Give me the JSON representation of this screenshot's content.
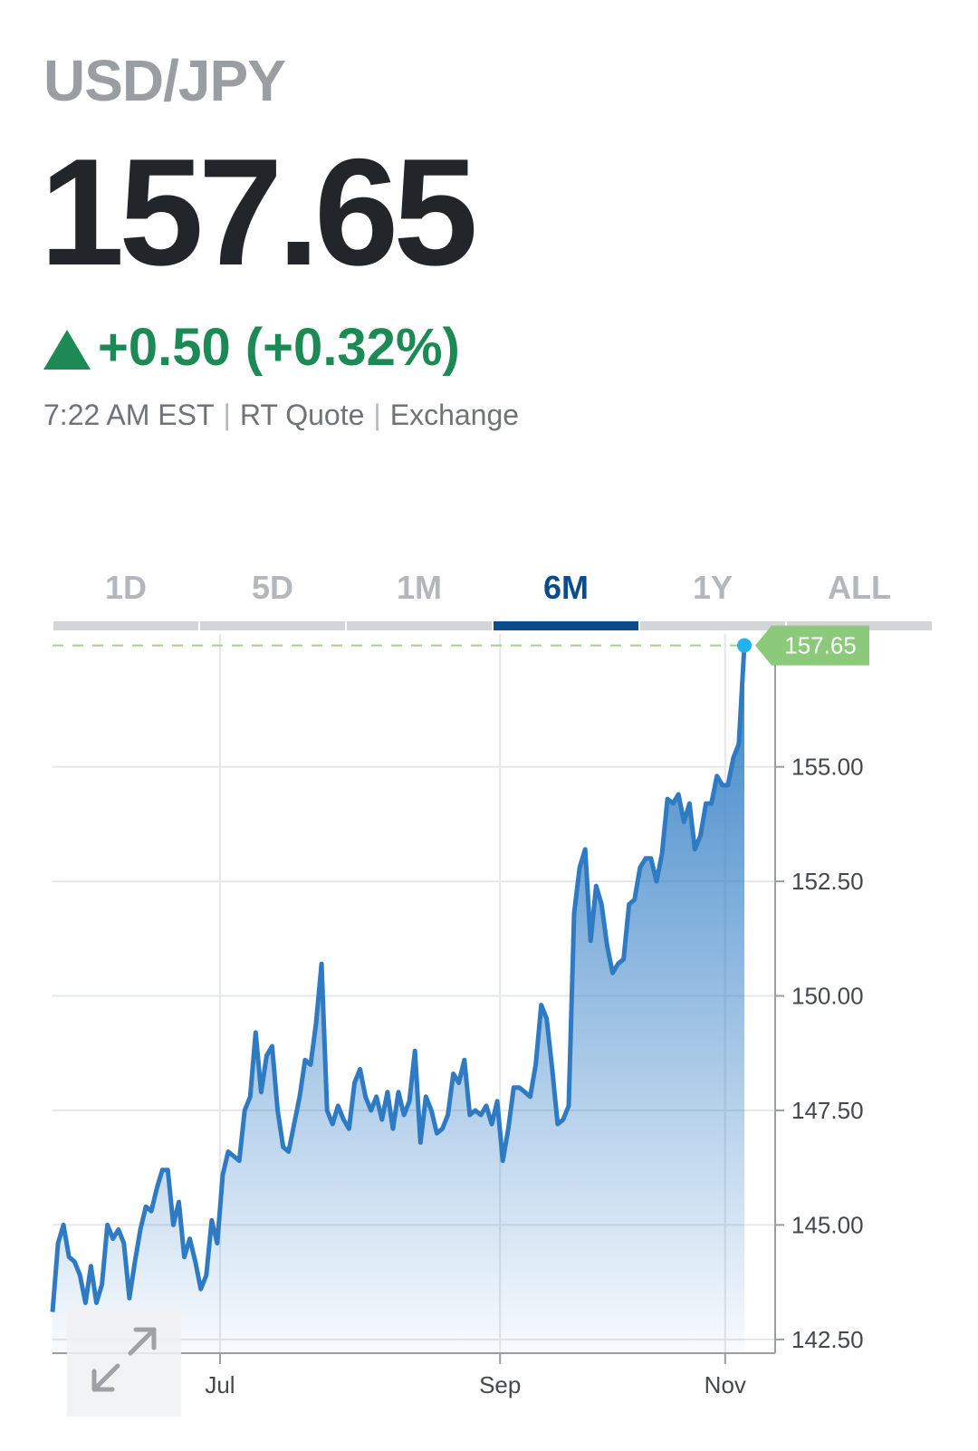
{
  "quote": {
    "symbol": "USD/JPY",
    "price": "157.65",
    "change": "+0.50 (+0.32%)",
    "time": "7:22 AM EST",
    "quote_type": "RT Quote",
    "source": "Exchange"
  },
  "tabs": [
    {
      "label": "1D"
    },
    {
      "label": "5D"
    },
    {
      "label": "1M"
    },
    {
      "label": "6M",
      "active": true
    },
    {
      "label": "1Y"
    },
    {
      "label": "ALL"
    }
  ],
  "colors": {
    "line": "#2e7bc4",
    "positive": "#1d8a55",
    "active_tab": "#0b4d8c",
    "price_tag": "#8cc97a",
    "last_dot": "#1fb4f0"
  },
  "expand_icon": "expand-arrows-icon",
  "chart_data": {
    "type": "area",
    "x_tick_labels": [
      "Jul",
      "Sep",
      "Nov"
    ],
    "y_ticks": [
      142.5,
      145.0,
      147.5,
      150.0,
      152.5,
      155.0
    ],
    "y_tick_labels": [
      "142.50",
      "145.00",
      "147.50",
      "150.00",
      "152.50",
      "155.00"
    ],
    "ylim": [
      142.2,
      157.9
    ],
    "last_price_label": "157.65",
    "grid": true,
    "values": [
      143.1,
      144.6,
      145.0,
      144.3,
      144.2,
      143.9,
      143.3,
      144.1,
      143.3,
      143.7,
      145.0,
      144.7,
      144.9,
      144.6,
      143.4,
      144.2,
      144.9,
      145.4,
      145.3,
      145.8,
      146.2,
      146.2,
      145.0,
      145.5,
      144.3,
      144.7,
      144.2,
      143.6,
      143.9,
      145.1,
      144.6,
      146.1,
      146.6,
      146.5,
      146.4,
      147.5,
      147.8,
      149.2,
      147.9,
      148.7,
      148.9,
      147.5,
      146.7,
      146.6,
      147.2,
      147.8,
      148.6,
      148.5,
      149.4,
      150.7,
      147.5,
      147.2,
      147.6,
      147.3,
      147.1,
      148.1,
      148.4,
      147.8,
      147.5,
      147.8,
      147.3,
      147.9,
      147.1,
      147.9,
      147.4,
      147.7,
      148.8,
      146.8,
      147.8,
      147.5,
      147.0,
      147.1,
      147.4,
      148.3,
      148.1,
      148.6,
      147.4,
      147.5,
      147.4,
      147.6,
      147.2,
      147.7,
      146.4,
      147.1,
      148.0,
      148.0,
      147.9,
      147.8,
      148.5,
      149.8,
      149.5,
      148.4,
      147.2,
      147.3,
      147.6,
      151.8,
      152.8,
      153.2,
      151.2,
      152.4,
      152.0,
      151.1,
      150.5,
      150.7,
      150.8,
      152.0,
      152.1,
      152.8,
      153.0,
      153.0,
      152.5,
      153.1,
      154.3,
      154.2,
      154.4,
      153.8,
      154.2,
      153.2,
      153.5,
      154.2,
      154.2,
      154.8,
      154.6,
      154.6,
      155.2,
      155.5,
      157.65
    ]
  }
}
